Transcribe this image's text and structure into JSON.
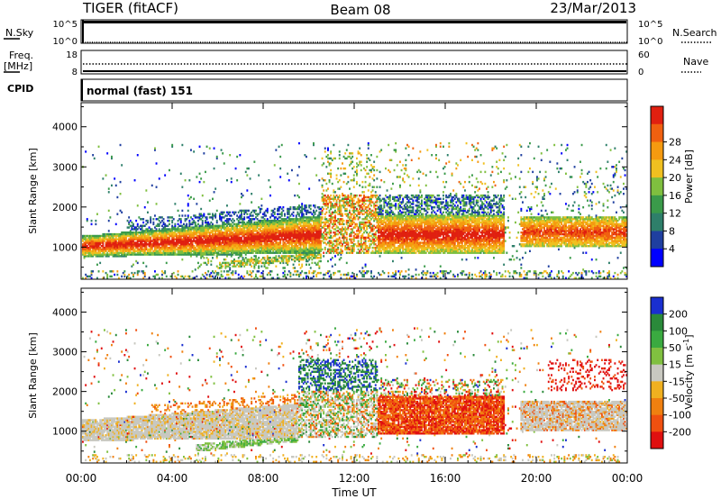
{
  "header": {
    "title": "TIGER (fitACF)",
    "beam": "Beam 08",
    "date": "23/Mar/2013"
  },
  "noise_panel": {
    "left_label": "N.Sky",
    "right_label": "N.Search",
    "left_ticks": [
      "10^5",
      "10^0"
    ],
    "right_ticks": [
      "10^5",
      "10^0"
    ]
  },
  "freq_panel": {
    "left_label": "Freq.",
    "left_unit": "[MHz]",
    "right_label": "Nave",
    "left_ticks": [
      "18",
      "8"
    ],
    "right_ticks": [
      "60",
      "0"
    ]
  },
  "cpid_panel": {
    "label": "CPID",
    "text": "normal (fast) 151"
  },
  "colors": {
    "power": [
      "#0000ff",
      "#1f3fa0",
      "#2e7f6a",
      "#3a9a4a",
      "#7fbf3f",
      "#f0c020",
      "#f59a10",
      "#f06010",
      "#e02010"
    ],
    "velocity": [
      "#1a2fd0",
      "#2a8a3a",
      "#3aaa40",
      "#80c040",
      "#c8c8c0",
      "#f0b020",
      "#f08010",
      "#f05010",
      "#e01010"
    ]
  },
  "chart_data": [
    {
      "type": "heatmap",
      "title": "",
      "xlabel": "",
      "ylabel": "Slant Range [km]",
      "xlim": [
        "00:00",
        "00:00"
      ],
      "ylim": [
        200,
        4600
      ],
      "x_ticks": [
        "00:00",
        "04:00",
        "08:00",
        "12:00",
        "16:00",
        "20:00",
        "00:00"
      ],
      "y_ticks": [
        1000,
        2000,
        3000,
        4000
      ],
      "colorbar_label": "Power [dB]",
      "colorbar_ticks": [
        4,
        8,
        12,
        16,
        20,
        24,
        28
      ],
      "grid": false,
      "description": "Backscatter power vs. time and slant range"
    },
    {
      "type": "heatmap",
      "title": "",
      "xlabel": "Time UT",
      "ylabel": "Slant Range [km]",
      "xlim": [
        "00:00",
        "00:00"
      ],
      "ylim": [
        200,
        4600
      ],
      "x_ticks": [
        "00:00",
        "04:00",
        "08:00",
        "12:00",
        "16:00",
        "20:00",
        "00:00"
      ],
      "y_ticks": [
        1000,
        2000,
        3000,
        4000
      ],
      "colorbar_label": "Velocity [m s^-1]",
      "colorbar_ticks": [
        200,
        100,
        50,
        15,
        -15,
        -50,
        -100,
        -200
      ],
      "grid": false,
      "description": "Line-of-sight Doppler velocity vs. time and slant range"
    }
  ]
}
